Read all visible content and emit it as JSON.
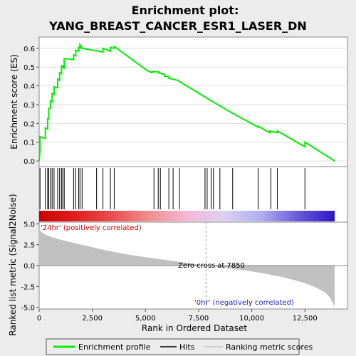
{
  "chart_data": {
    "type": "line",
    "title": "Enrichment plot:",
    "subtitle": "YANG_BREAST_CANCER_ESR1_LASER_DN",
    "es_panel": {
      "ylabel": "Enrichment score (ES)",
      "ylim": [
        -0.03,
        0.66
      ],
      "yticks": [
        0.0,
        0.1,
        0.2,
        0.3,
        0.4,
        0.5,
        0.6
      ],
      "ytick_labels": [
        "0.0",
        "0.1",
        "0.2",
        "0.3",
        "0.4",
        "0.5",
        "0.6"
      ],
      "series": [
        {
          "name": "Enrichment profile",
          "color": "#00ee00",
          "x": [
            0,
            40,
            40,
            290,
            290,
            400,
            400,
            450,
            450,
            530,
            530,
            610,
            610,
            700,
            700,
            870,
            870,
            960,
            960,
            1050,
            1050,
            1110,
            1110,
            1180,
            1180,
            1620,
            1620,
            1720,
            1720,
            1860,
            1860,
            1920,
            1920,
            2020,
            2020,
            3000,
            3000,
            3350,
            3350,
            3530,
            3530,
            5100,
            5100,
            5300,
            5300,
            5600,
            5600,
            5900,
            5900,
            6100,
            6100,
            6500,
            6500,
            8100,
            8100,
            9000,
            9000,
            10300,
            10300,
            10850,
            10850,
            11200,
            11200,
            12500,
            12500,
            13900
          ],
          "y": [
            0.0,
            0.06,
            0.13,
            0.12,
            0.175,
            0.17,
            0.225,
            0.225,
            0.28,
            0.28,
            0.32,
            0.315,
            0.36,
            0.355,
            0.395,
            0.39,
            0.435,
            0.43,
            0.47,
            0.465,
            0.505,
            0.5,
            0.51,
            0.49,
            0.545,
            0.54,
            0.565,
            0.56,
            0.59,
            0.585,
            0.605,
            0.6,
            0.62,
            0.6,
            0.6,
            0.58,
            0.6,
            0.585,
            0.605,
            0.6,
            0.61,
            0.48,
            0.48,
            0.47,
            0.475,
            0.475,
            0.47,
            0.46,
            0.45,
            0.45,
            0.44,
            0.43,
            0.43,
            0.32,
            0.32,
            0.26,
            0.26,
            0.18,
            0.185,
            0.15,
            0.16,
            0.15,
            0.16,
            0.075,
            0.1,
            0.0
          ]
        }
      ]
    },
    "hits_panel": {
      "hit_positions": [
        40,
        290,
        400,
        450,
        530,
        610,
        700,
        870,
        960,
        1050,
        1110,
        1180,
        1620,
        1720,
        1860,
        1920,
        2020,
        2700,
        3000,
        3350,
        3530,
        5400,
        5600,
        5700,
        6100,
        6300,
        6600,
        7800,
        7900,
        8100,
        8200,
        8500,
        9100,
        10300,
        10900,
        11200,
        12500
      ]
    },
    "rank_panel": {
      "ylabel": "Ranked list metric (Signal2Noise)",
      "ylim": [
        -5.2,
        5.2
      ],
      "yticks": [
        5.0,
        2.5,
        0.0,
        -2.5,
        -5.0
      ],
      "ytick_labels": [
        "5.0",
        "2.5",
        "0.0",
        "-2.5",
        "-5.0"
      ],
      "fill_color": "#c0c0c0",
      "x": [
        0,
        100,
        300,
        600,
        1000,
        1500,
        2000,
        2500,
        3000,
        4000,
        5000,
        6000,
        7000,
        7850,
        8500,
        9500,
        10500,
        11500,
        12500,
        13000,
        13500,
        13700,
        13900
      ],
      "y": [
        4.4,
        4.0,
        3.7,
        3.4,
        3.1,
        2.8,
        2.5,
        2.2,
        1.9,
        1.4,
        1.0,
        0.65,
        0.3,
        0.0,
        -0.2,
        -0.5,
        -0.9,
        -1.4,
        -2.1,
        -2.6,
        -3.3,
        -3.9,
        -4.9
      ],
      "label_positive": "'24hr' (positively correlated)",
      "label_negative": "'0hr' (negatively correlated)",
      "zero_cross_label": "Zero cross at 7850",
      "zero_cross": 7850,
      "xlabel": "Rank in Ordered Dataset",
      "xlim": [
        0,
        14500
      ],
      "xticks": [
        0,
        2500,
        5000,
        7500,
        10000,
        12500
      ],
      "xtick_labels": [
        "0",
        "2,500",
        "5,000",
        "7,500",
        "10,000",
        "12,500"
      ]
    },
    "gradient_stops": [
      "#cc0000",
      "#e02020",
      "#e85050",
      "#f09090",
      "#f4b8d8",
      "#dcd0f0",
      "#b0b0f0",
      "#6a5ad8",
      "#2a18c8"
    ],
    "legend": [
      {
        "label": "Enrichment profile",
        "color": "#00ee00",
        "kind": "line"
      },
      {
        "label": "Hits",
        "color": "#000000",
        "kind": "line"
      },
      {
        "label": "Ranking metric scores",
        "color": "#c0c0c0",
        "kind": "line"
      }
    ]
  }
}
